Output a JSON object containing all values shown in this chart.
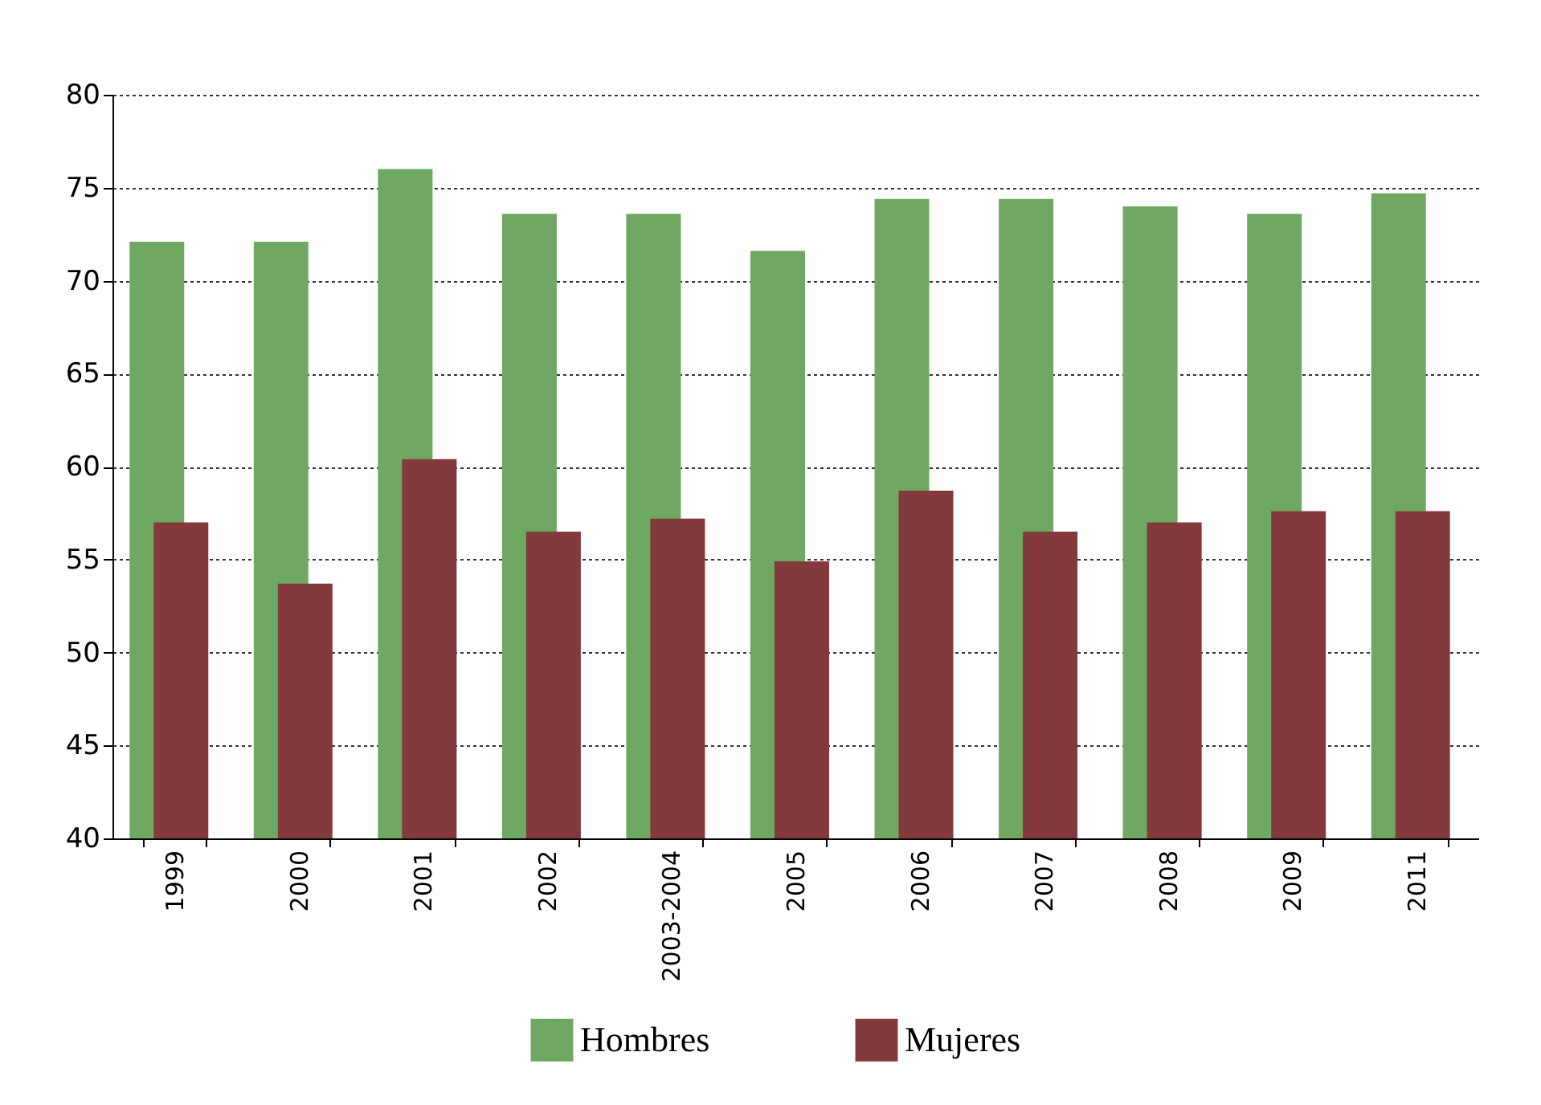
{
  "chart_data": {
    "type": "bar",
    "categories": [
      "1999",
      "2000",
      "2001",
      "2002",
      "2003-2004",
      "2005",
      "2006",
      "2007",
      "2008",
      "2009",
      "2011"
    ],
    "series": [
      {
        "name": "Hombres",
        "color": "#6fa862",
        "values": [
          72.1,
          72.1,
          76.0,
          73.6,
          73.6,
          71.6,
          74.4,
          74.4,
          74.0,
          73.6,
          74.7
        ]
      },
      {
        "name": "Mujeres",
        "color": "#843a3c",
        "values": [
          57.0,
          53.7,
          60.4,
          56.5,
          57.2,
          54.9,
          58.7,
          56.5,
          57.0,
          57.6,
          57.6
        ]
      }
    ],
    "ylim": [
      40,
      80
    ],
    "yticks": [
      40,
      45,
      50,
      55,
      60,
      65,
      70,
      75,
      80
    ],
    "grid": "y",
    "legend": "bottom"
  }
}
